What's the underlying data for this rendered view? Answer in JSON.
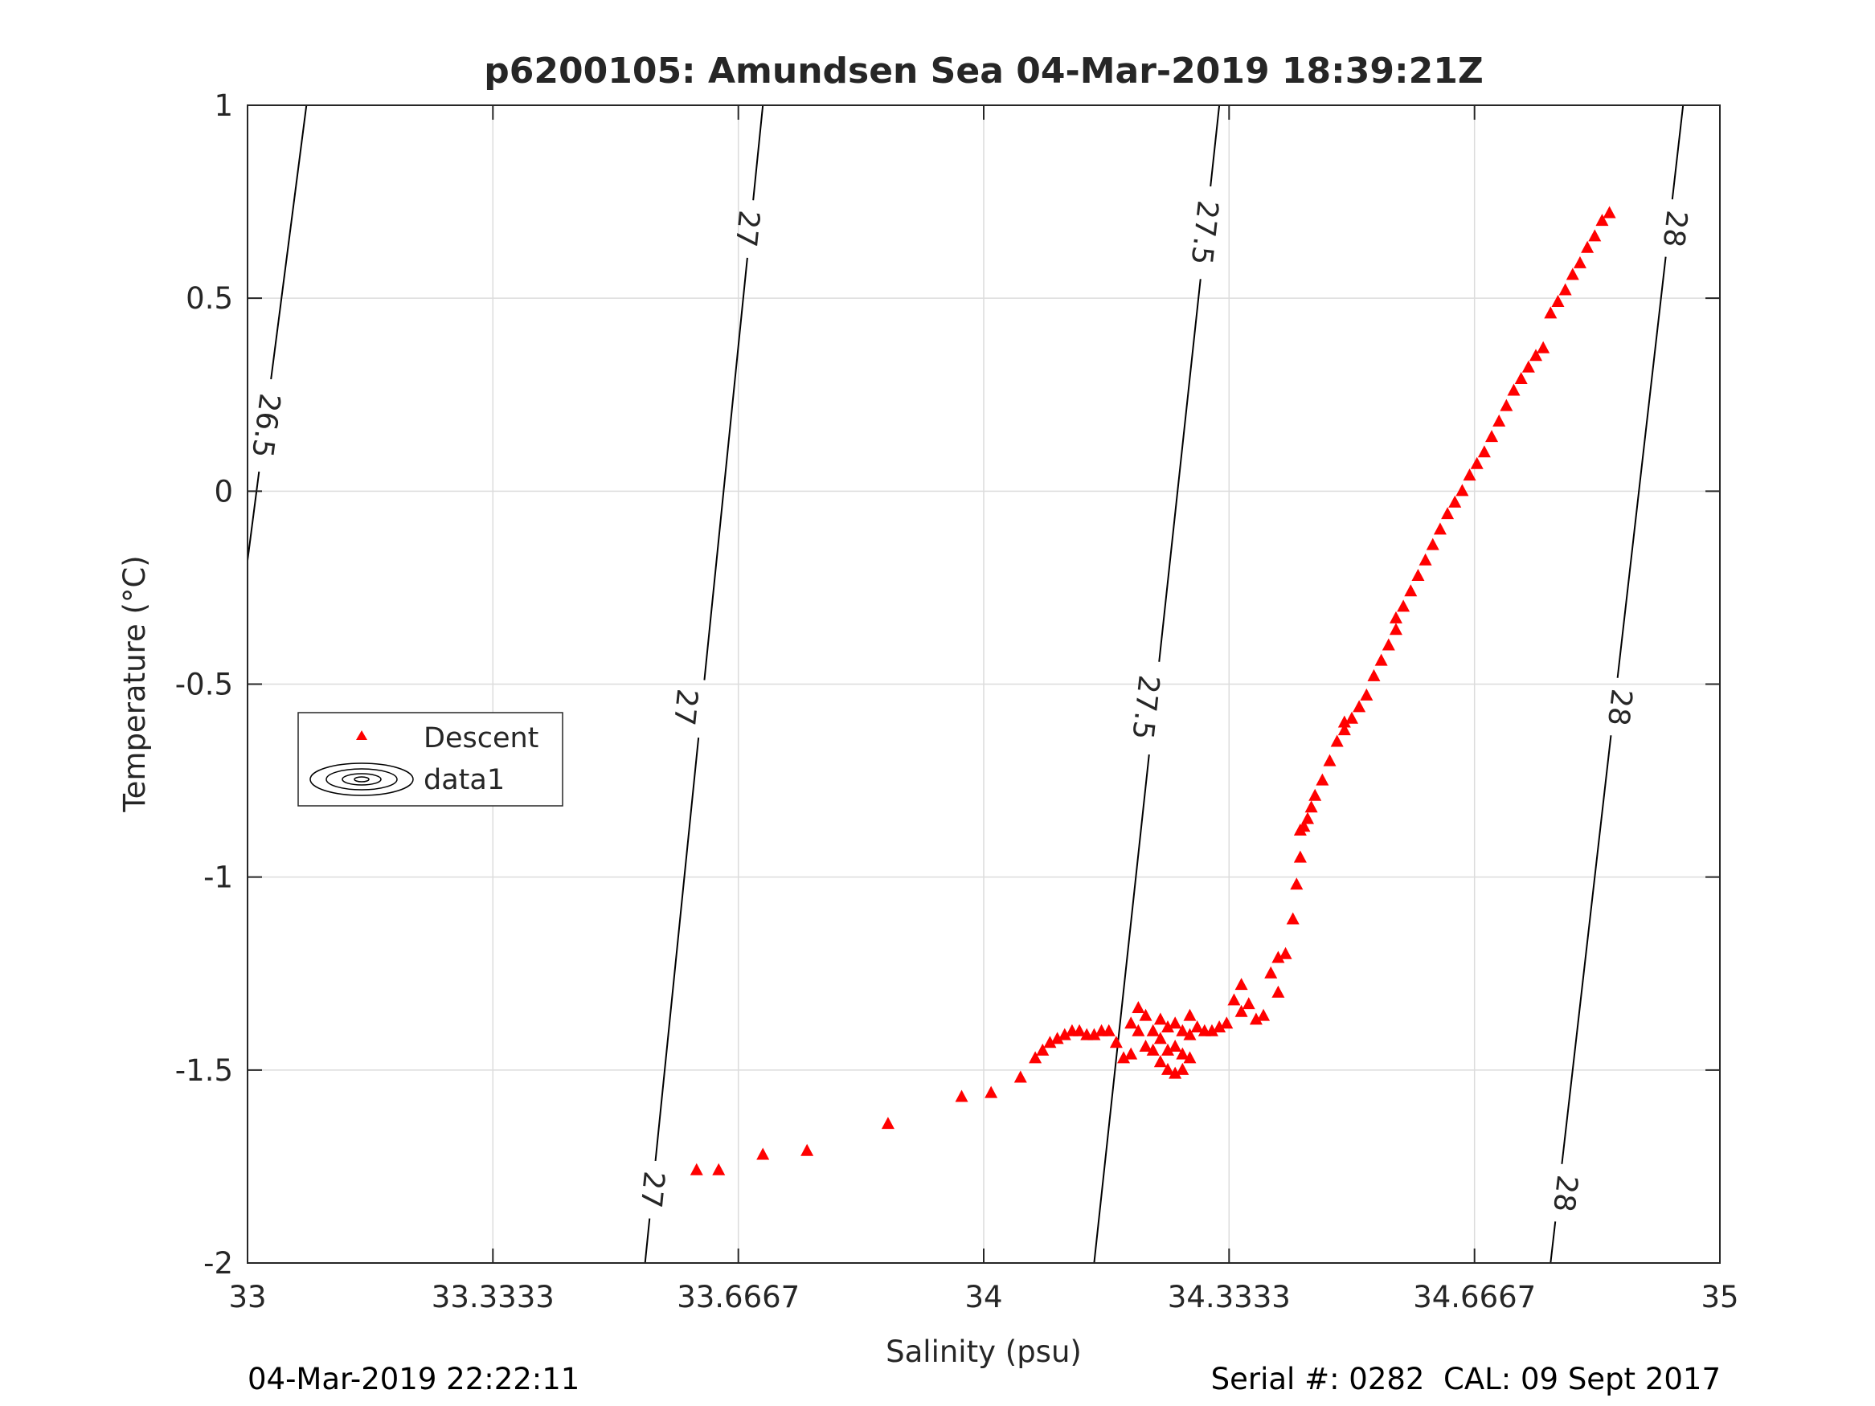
{
  "footer": {
    "left": "04-Mar-2019 22:22:11",
    "right": "Serial #: 0282  CAL: 09 Sept 2017"
  },
  "chart_data": {
    "type": "scatter",
    "title": "p6200105: Amundsen Sea 04-Mar-2019 18:39:21Z",
    "xlabel": "Salinity (psu)",
    "ylabel": "Temperature (°C)",
    "xlim": [
      33,
      35
    ],
    "ylim": [
      -2,
      1
    ],
    "xticks": [
      "33",
      "33.3333",
      "33.6667",
      "34",
      "34.3333",
      "34.6667",
      "35"
    ],
    "xtick_values": [
      33,
      33.3333,
      33.6667,
      34,
      34.3333,
      34.6667,
      35
    ],
    "yticks": [
      "1",
      "0.5",
      "0",
      "-0.5",
      "-1",
      "-1.5",
      "-2"
    ],
    "ytick_values": [
      1,
      0.5,
      0,
      -0.5,
      -1,
      -1.5,
      -2
    ],
    "grid": true,
    "legend_position": "middle-left",
    "legend": [
      "Descent",
      "data1"
    ],
    "colors": {
      "descent": "#ff0000",
      "contour": "#000000",
      "grid": "#dcdcdc",
      "axis": "#262626"
    },
    "contours": [
      {
        "label": "26.5",
        "points": [
          [
            33.0,
            -0.18
          ],
          [
            33.08,
            1.0
          ]
        ],
        "label_positions": [
          [
            33.025,
            0.17
          ]
        ]
      },
      {
        "label": "27",
        "points": [
          [
            33.54,
            -2.0
          ],
          [
            33.7,
            1.0
          ]
        ],
        "label_positions": [
          [
            33.55,
            -1.81
          ],
          [
            33.595,
            -0.56
          ],
          [
            33.679,
            0.68
          ]
        ]
      },
      {
        "label": "27.5",
        "points": [
          [
            34.15,
            -2.0
          ],
          [
            34.32,
            1.0
          ]
        ],
        "label_positions": [
          [
            34.22,
            -0.56
          ],
          [
            34.3,
            0.67
          ]
        ]
      },
      {
        "label": "28",
        "points": [
          [
            34.77,
            -2.0
          ],
          [
            34.95,
            1.0
          ]
        ],
        "label_positions": [
          [
            34.79,
            -1.82
          ],
          [
            34.864,
            -0.56
          ],
          [
            34.939,
            0.68
          ]
        ]
      }
    ],
    "series": [
      {
        "name": "Descent",
        "marker": "triangle",
        "x": [
          33.61,
          33.64,
          33.7,
          33.76,
          33.87,
          33.97,
          34.01,
          34.05,
          34.07,
          34.08,
          34.09,
          34.1,
          34.11,
          34.12,
          34.13,
          34.14,
          34.15,
          34.16,
          34.17,
          34.18,
          34.19,
          34.2,
          34.2,
          34.21,
          34.21,
          34.22,
          34.22,
          34.23,
          34.23,
          34.24,
          34.24,
          34.24,
          34.25,
          34.25,
          34.25,
          34.26,
          34.26,
          34.26,
          34.27,
          34.27,
          34.27,
          34.28,
          34.28,
          34.28,
          34.29,
          34.3,
          34.31,
          34.32,
          34.33,
          34.34,
          34.35,
          34.35,
          34.36,
          34.37,
          34.38,
          34.39,
          34.4,
          34.4,
          34.41,
          34.42,
          34.425,
          34.43,
          34.43,
          34.435,
          34.44,
          34.445,
          34.45,
          34.46,
          34.47,
          34.48,
          34.49,
          34.49,
          34.5,
          34.51,
          34.52,
          34.53,
          34.54,
          34.55,
          34.56,
          34.56,
          34.57,
          34.58,
          34.59,
          34.6,
          34.61,
          34.62,
          34.63,
          34.64,
          34.65,
          34.66,
          34.67,
          34.68,
          34.69,
          34.7,
          34.71,
          34.72,
          34.73,
          34.74,
          34.75,
          34.76,
          34.77,
          34.78,
          34.79,
          34.8,
          34.81,
          34.82,
          34.83,
          34.84,
          34.85
        ],
        "y": [
          -1.76,
          -1.76,
          -1.72,
          -1.71,
          -1.64,
          -1.57,
          -1.56,
          -1.52,
          -1.47,
          -1.45,
          -1.43,
          -1.42,
          -1.41,
          -1.4,
          -1.4,
          -1.41,
          -1.41,
          -1.4,
          -1.4,
          -1.43,
          -1.47,
          -1.46,
          -1.38,
          -1.4,
          -1.34,
          -1.44,
          -1.36,
          -1.45,
          -1.4,
          -1.48,
          -1.42,
          -1.37,
          -1.5,
          -1.45,
          -1.39,
          -1.51,
          -1.44,
          -1.38,
          -1.5,
          -1.46,
          -1.4,
          -1.47,
          -1.41,
          -1.36,
          -1.39,
          -1.4,
          -1.4,
          -1.39,
          -1.38,
          -1.32,
          -1.28,
          -1.35,
          -1.33,
          -1.37,
          -1.36,
          -1.25,
          -1.21,
          -1.3,
          -1.2,
          -1.11,
          -1.02,
          -0.95,
          -0.88,
          -0.87,
          -0.85,
          -0.82,
          -0.79,
          -0.75,
          -0.7,
          -0.65,
          -0.62,
          -0.6,
          -0.59,
          -0.56,
          -0.53,
          -0.48,
          -0.44,
          -0.4,
          -0.36,
          -0.33,
          -0.3,
          -0.26,
          -0.22,
          -0.18,
          -0.14,
          -0.1,
          -0.06,
          -0.03,
          0.0,
          0.04,
          0.07,
          0.1,
          0.14,
          0.18,
          0.22,
          0.26,
          0.29,
          0.32,
          0.35,
          0.37,
          0.46,
          0.49,
          0.52,
          0.56,
          0.59,
          0.63,
          0.66,
          0.7,
          0.72
        ]
      }
    ]
  }
}
